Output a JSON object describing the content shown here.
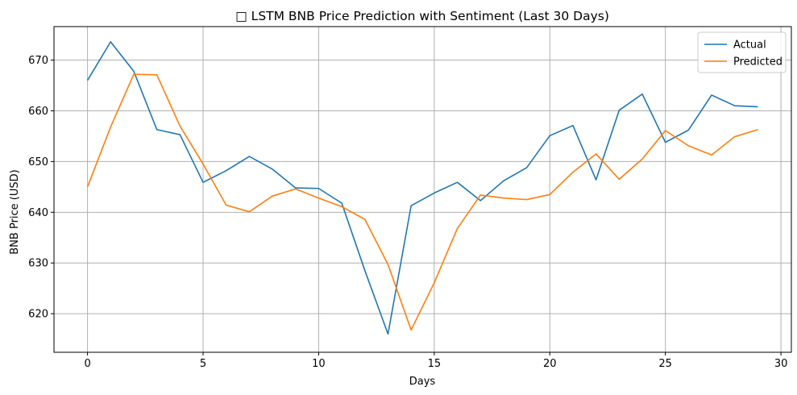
{
  "chart_data": {
    "type": "line",
    "title": "□ LSTM BNB Price Prediction with Sentiment (Last 30 Days)",
    "xlabel": "Days",
    "ylabel": "BNB Price (USD)",
    "xlim": [
      -1.45,
      30.45
    ],
    "ylim": [
      612.4,
      676.6
    ],
    "xticks": [
      0,
      5,
      10,
      15,
      20,
      25,
      30
    ],
    "yticks": [
      620,
      630,
      640,
      650,
      660,
      670
    ],
    "grid": true,
    "legend_position": "top-right",
    "x": [
      0,
      1,
      2,
      3,
      4,
      5,
      6,
      7,
      8,
      9,
      10,
      11,
      12,
      13,
      14,
      15,
      16,
      17,
      18,
      19,
      20,
      21,
      22,
      23,
      24,
      25,
      26,
      27,
      28,
      29
    ],
    "series": [
      {
        "name": "Actual",
        "color": "#1f77b4",
        "values": [
          666.0,
          673.6,
          667.8,
          656.3,
          655.3,
          645.9,
          648.2,
          651.0,
          648.5,
          644.8,
          644.7,
          641.8,
          628.5,
          616.0,
          641.3,
          643.8,
          645.9,
          642.3,
          646.2,
          648.8,
          655.1,
          657.1,
          646.4,
          660.1,
          663.3,
          653.8,
          656.2,
          663.1,
          661.0,
          660.8
        ]
      },
      {
        "name": "Predicted",
        "color": "#ff7f0e",
        "values": [
          645.0,
          656.8,
          667.2,
          667.1,
          657.0,
          649.5,
          641.4,
          640.1,
          643.2,
          644.6,
          642.8,
          641.1,
          638.6,
          629.7,
          616.8,
          626.1,
          636.8,
          643.4,
          642.8,
          642.5,
          643.5,
          647.9,
          651.5,
          646.5,
          650.5,
          656.1,
          653.1,
          651.3,
          654.9,
          656.3
        ]
      }
    ]
  }
}
